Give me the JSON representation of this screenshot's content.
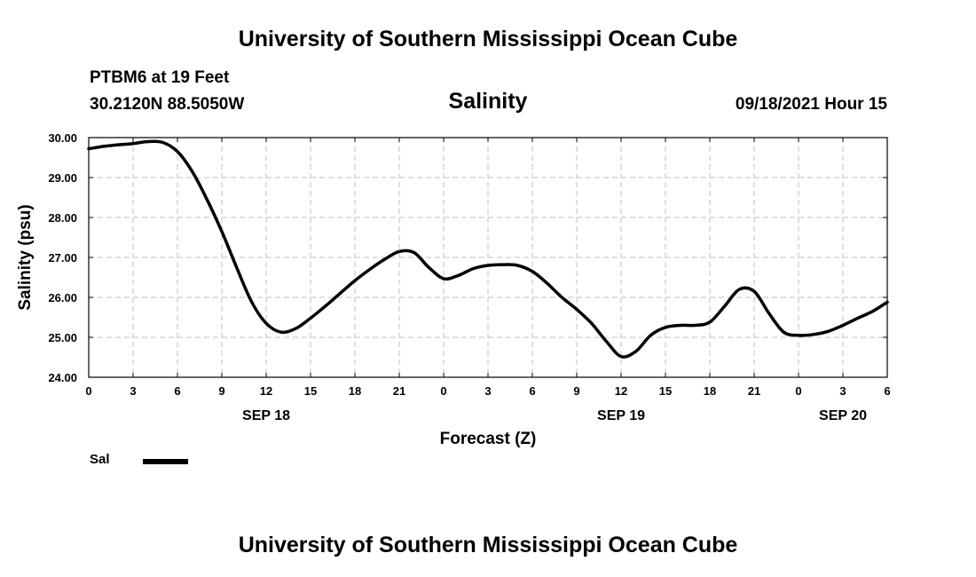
{
  "header": {
    "title_top": "University of Southern Mississippi Ocean Cube",
    "station": "PTBM6 at 19 Feet",
    "coords": "30.2120N  88.5050W",
    "date": "09/18/2021 Hour 15"
  },
  "footer": {
    "title_bottom": "University of Southern Mississippi Ocean Cube"
  },
  "legend": {
    "label": "Sal",
    "color": "#000000"
  },
  "chart_data": {
    "type": "line",
    "title": "Salinity",
    "xlabel": "Forecast (Z)",
    "ylabel": "Salinity (psu)",
    "xlim": [
      0,
      54
    ],
    "ylim": [
      24,
      30
    ],
    "yticks": [
      24,
      25,
      26,
      27,
      28,
      29,
      30
    ],
    "ytick_labels": [
      "24.00",
      "25.00",
      "26.00",
      "27.00",
      "28.00",
      "29.00",
      "30.00"
    ],
    "xticks": [
      0,
      3,
      6,
      9,
      12,
      15,
      18,
      21,
      24,
      27,
      30,
      33,
      36,
      39,
      42,
      45,
      48,
      51,
      54
    ],
    "xtick_labels": [
      "0",
      "3",
      "6",
      "9",
      "12",
      "15",
      "18",
      "21",
      "0",
      "3",
      "6",
      "9",
      "12",
      "15",
      "18",
      "21",
      "0",
      "3",
      "6"
    ],
    "date_labels": [
      {
        "x": 12,
        "label": "SEP 18"
      },
      {
        "x": 36,
        "label": "SEP 19"
      },
      {
        "x": 51,
        "label": "SEP 20"
      }
    ],
    "grid": true,
    "series": [
      {
        "name": "Sal",
        "x": [
          0,
          1,
          2,
          3,
          4,
          5,
          6,
          7,
          8,
          9,
          10,
          11,
          12,
          13,
          14,
          15,
          16,
          17,
          18,
          19,
          20,
          21,
          22,
          23,
          24,
          25,
          26,
          27,
          28,
          29,
          30,
          31,
          32,
          33,
          34,
          35,
          36,
          37,
          38,
          39,
          40,
          41,
          42,
          43,
          44,
          45,
          46,
          47,
          48,
          49,
          50,
          51,
          52,
          53,
          54
        ],
        "values": [
          29.72,
          29.78,
          29.82,
          29.85,
          29.9,
          29.88,
          29.65,
          29.15,
          28.45,
          27.65,
          26.75,
          25.9,
          25.35,
          25.13,
          25.22,
          25.48,
          25.78,
          26.1,
          26.42,
          26.7,
          26.95,
          27.15,
          27.12,
          26.75,
          26.47,
          26.55,
          26.72,
          26.8,
          26.82,
          26.8,
          26.65,
          26.35,
          26.0,
          25.7,
          25.35,
          24.9,
          24.52,
          24.65,
          25.05,
          25.25,
          25.3,
          25.3,
          25.38,
          25.78,
          26.2,
          26.15,
          25.6,
          25.13,
          25.05,
          25.07,
          25.15,
          25.3,
          25.48,
          25.65,
          25.88
        ]
      }
    ]
  }
}
